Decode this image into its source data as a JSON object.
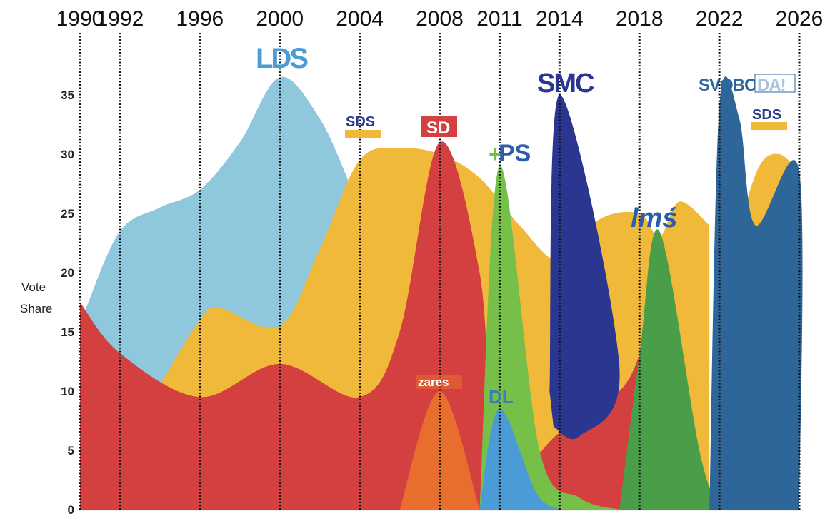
{
  "chart_data": {
    "type": "area",
    "title": "",
    "xlabel": "",
    "ylabel": "Vote\nShare",
    "ylabel_lines": [
      "Vote",
      "Share"
    ],
    "ylim": [
      0,
      37
    ],
    "xlim": [
      1990,
      2026
    ],
    "yticks": [
      0,
      5,
      10,
      15,
      20,
      25,
      30,
      35
    ],
    "election_years": [
      1990,
      1992,
      1996,
      2000,
      2004,
      2008,
      2011,
      2014,
      2018,
      2022,
      2026
    ],
    "grid": "dotted vertical lines at election years",
    "legend": "inline party labels",
    "series": [
      {
        "name": "LDS",
        "color": "#8fc8dc",
        "label_color": "#4a9bd6",
        "points": [
          [
            1990.3,
            17
          ],
          [
            1992,
            23.5
          ],
          [
            1994,
            25.5
          ],
          [
            1996,
            27
          ],
          [
            1998,
            31
          ],
          [
            2000,
            36.5
          ],
          [
            2002,
            33
          ],
          [
            2003.5,
            27.5
          ]
        ]
      },
      {
        "name": "SDS",
        "color": "#f0b93a",
        "label_color": "#2a3b8f",
        "points": [
          [
            1994,
            10.5
          ],
          [
            1996,
            16
          ],
          [
            1997,
            17
          ],
          [
            2000,
            15.5
          ],
          [
            2002,
            22
          ],
          [
            2004,
            29.5
          ],
          [
            2006,
            30.5
          ],
          [
            2008,
            30
          ],
          [
            2010,
            28
          ],
          [
            2012,
            24
          ],
          [
            2014,
            21
          ],
          [
            2016,
            24.5
          ],
          [
            2018,
            25
          ],
          [
            2019,
            23
          ],
          [
            2020,
            26
          ],
          [
            2021.5,
            24
          ]
        ]
      },
      {
        "name": "SDS",
        "color": "#f0b93a",
        "label_color": "#2a3b8f",
        "points": [
          [
            2023,
            24
          ],
          [
            2024,
            29
          ],
          [
            2025,
            30
          ],
          [
            2026,
            28.5
          ]
        ]
      },
      {
        "name": "SD",
        "color": "#d44040",
        "label_color": "#ffffff",
        "points": [
          [
            1990,
            17.5
          ],
          [
            1992,
            13.2
          ],
          [
            1996,
            9.5
          ],
          [
            2000,
            12.3
          ],
          [
            2004,
            9.5
          ],
          [
            2006,
            15
          ],
          [
            2008,
            31
          ],
          [
            2010,
            20
          ],
          [
            2011,
            3
          ],
          [
            2014,
            6.5
          ],
          [
            2017,
            10
          ],
          [
            2018,
            13
          ]
        ]
      },
      {
        "name": "Zares",
        "color": "#e86e2e",
        "label_color": "#ffffff",
        "points": [
          [
            2006,
            0
          ],
          [
            2008,
            10
          ],
          [
            2010,
            0
          ]
        ]
      },
      {
        "name": "PS",
        "color": "#76c04a",
        "label_color": "#2a5db0",
        "points": [
          [
            2010,
            0
          ],
          [
            2011,
            29
          ],
          [
            2013,
            5
          ],
          [
            2015,
            1
          ],
          [
            2017,
            0
          ]
        ]
      },
      {
        "name": "DL",
        "color": "#4a9bd6",
        "label_color": "#3a7fb0",
        "points": [
          [
            2010,
            0
          ],
          [
            2011,
            8.5
          ],
          [
            2013,
            1
          ],
          [
            2015,
            0
          ]
        ]
      },
      {
        "name": "SMC",
        "color": "#2b3690",
        "label_color": "#2b3690",
        "points": [
          [
            2013.5,
            10
          ],
          [
            2014,
            35
          ],
          [
            2017,
            12
          ],
          [
            2015,
            6.2
          ],
          [
            2013.7,
            7
          ]
        ]
      },
      {
        "name": "LMŠ",
        "color": "#4a9e4a",
        "label_color": "#2a5db0",
        "points": [
          [
            2017,
            0
          ],
          [
            2018,
            13
          ],
          [
            2019,
            23.5
          ],
          [
            2021,
            5
          ],
          [
            2022,
            0
          ]
        ]
      },
      {
        "name": "Svoboda",
        "color": "#2e6699",
        "label_color": "#2e6699",
        "points": [
          [
            2021.5,
            0
          ],
          [
            2022,
            34
          ],
          [
            2023,
            33
          ],
          [
            2023.8,
            24
          ],
          [
            2026,
            28.5
          ],
          [
            2026,
            0
          ]
        ]
      }
    ]
  },
  "labels": {
    "lds": "LDS",
    "sds1": "SDS",
    "sd": "SD",
    "ps": "PS",
    "ps_plus": "+",
    "smc": "SMC",
    "zares": "zares",
    "dl": "DL",
    "lms": "lmś",
    "svoboda_a": "SVOBO",
    "svoboda_b": "DA!",
    "sds2": "SDS"
  }
}
